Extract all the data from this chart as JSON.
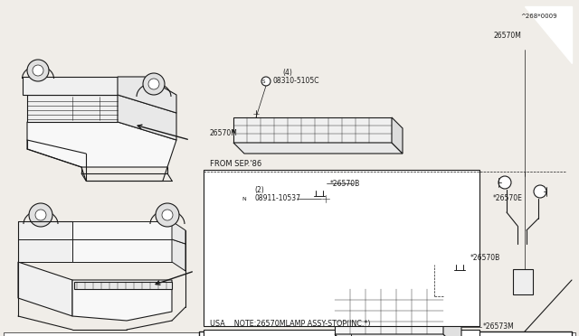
{
  "bg_color": "#f0ede8",
  "line_color": "#1a1a1a",
  "border_color": "#555555",
  "note_text": "USA    NOTE:26570MLAMP ASSY-STOP(INC.*)",
  "from_sep86": "FROM SEP.'86",
  "p26573M": "*26573M",
  "p26570B_1": "*26570B",
  "p26570B_2": "*26570B",
  "p08911": "08911-10537",
  "p08911_qty": "(2)",
  "p08310": "08310-5105C",
  "p08310_qty": "(4)",
  "p26570M_1": "26570M",
  "p26570E": "*26570E",
  "p26570M_2": "26570M",
  "fig_ref": "^268*0009",
  "fig_width": 6.4,
  "fig_height": 3.72,
  "dpi": 100
}
